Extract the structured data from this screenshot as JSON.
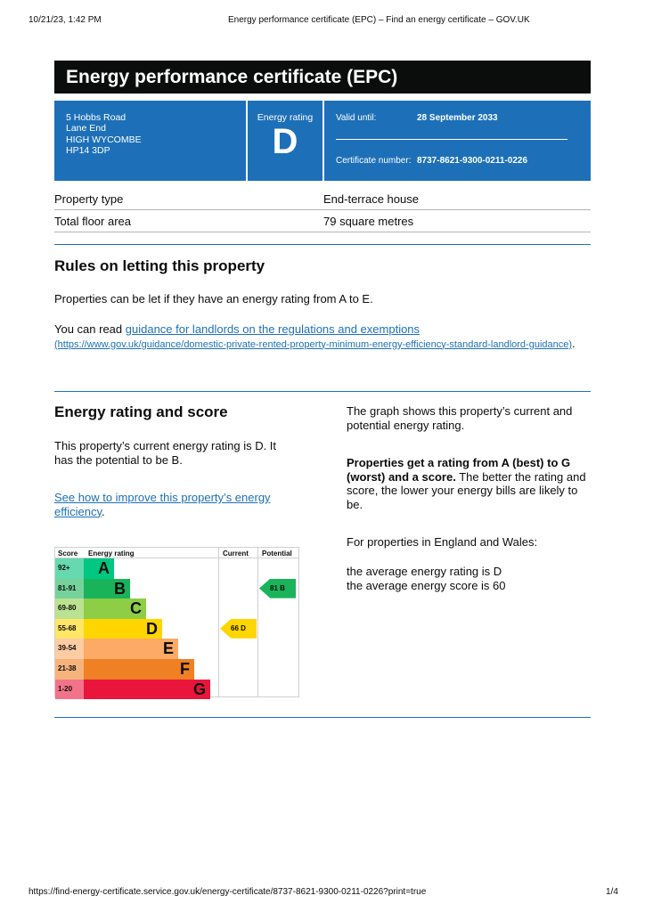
{
  "browser": {
    "datetime": "10/21/23, 1:42 PM",
    "page_title": "Energy performance certificate (EPC) – Find an energy certificate – GOV.UK",
    "url": "https://find-energy-certificate.service.gov.uk/energy-certificate/8737-8621-9300-0211-0226?print=true",
    "page": "1/4"
  },
  "title": "Energy performance certificate (EPC)",
  "address": [
    "5 Hobbs Road",
    "Lane End",
    "HIGH WYCOMBE",
    "HP14 3DP"
  ],
  "rating": {
    "label": "Energy rating",
    "value": "D"
  },
  "valid": {
    "label": "Valid until:",
    "value": "28 September 2033"
  },
  "certificate": {
    "label": "Certificate number:",
    "value": "8737-8621-9300-0211-0226"
  },
  "properties": [
    {
      "label": "Property type",
      "value": "End-terrace house"
    },
    {
      "label": "Total floor area",
      "value": "79 square metres"
    }
  ],
  "rules": {
    "heading": "Rules on letting this property",
    "p1": "Properties can be let if they have an energy rating from A to E.",
    "p2_prefix": "You can read ",
    "link": "guidance for landlords on the regulations and exemptions",
    "link_url": "(https://www.gov.uk/guidance/domestic-private-rented-property-minimum-energy-efficiency-standard-landlord-guidance)",
    "p2_suffix": "."
  },
  "score": {
    "heading": "Energy rating and score",
    "p1": "This property’s current energy rating is D. It has the potential to be B.",
    "link": "See how to improve this property’s energy efficiency",
    "link_suffix": "."
  },
  "right": {
    "p1": "The graph shows this property’s current and potential energy rating.",
    "p2_bold": "Properties get a rating from A (best) to G (worst) and a score.",
    "p2": " The better the rating and score, the lower your energy bills are likely to be.",
    "p3": "For properties in England and Wales:",
    "p4": "the average energy rating is D",
    "p5": "the average energy score is 60"
  },
  "chart": {
    "headers": [
      "Score",
      "Energy rating",
      "Current",
      "Potential"
    ],
    "bands": [
      {
        "score": "92+",
        "letter": "A",
        "color": "#00c781",
        "light": "#66d9b0"
      },
      {
        "score": "81-91",
        "letter": "B",
        "color": "#19b459",
        "light": "#75d29b"
      },
      {
        "score": "69-80",
        "letter": "C",
        "color": "#8dce46",
        "light": "#bbe290"
      },
      {
        "score": "55-68",
        "letter": "D",
        "color": "#ffd500",
        "light": "#ffe666"
      },
      {
        "score": "39-54",
        "letter": "E",
        "color": "#fcaa65",
        "light": "#fdcca3"
      },
      {
        "score": "21-38",
        "letter": "F",
        "color": "#ef8023",
        "light": "#f5b37b"
      },
      {
        "score": "1-20",
        "letter": "G",
        "color": "#e9153b",
        "light": "#f27389"
      }
    ],
    "current": {
      "label": "66  D",
      "score": 66,
      "band": "D",
      "color": "#ffd500"
    },
    "potential": {
      "label": "81  B",
      "score": 81,
      "band": "B",
      "color": "#19b459"
    }
  }
}
